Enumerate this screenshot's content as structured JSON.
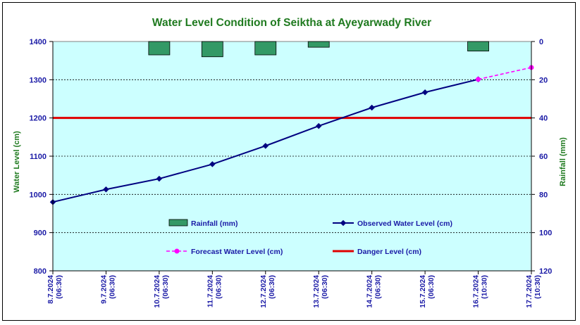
{
  "chart_data": {
    "type": "line",
    "title": "Water Level Condition of Seiktha at Ayeyarwady River",
    "ylabel": "Water Level (cm)",
    "y2label": "Rainfall (mm)",
    "ylim": [
      800,
      1400
    ],
    "y2lim": [
      0,
      120
    ],
    "y2_inverted": true,
    "yticks": [
      "1400",
      "1300",
      "1200",
      "1100",
      "1000",
      "900",
      "800"
    ],
    "y2ticks": [
      "0",
      "20",
      "40",
      "60",
      "80",
      "100",
      "120"
    ],
    "categories": [
      [
        "8.7.2024",
        "(06:30)"
      ],
      [
        "9.7.2024",
        "(06:30)"
      ],
      [
        "10.7.2024",
        "(06:30)"
      ],
      [
        "11.7.2024",
        "(06:30)"
      ],
      [
        "12.7.2024",
        "(06:30)"
      ],
      [
        "13.7.2024",
        "(06:30)"
      ],
      [
        "14.7.2024",
        "(06:30)"
      ],
      [
        "15.7.2024",
        "(06:30)"
      ],
      [
        "16.7.2024",
        "(10:30)"
      ],
      [
        "17.7.2024",
        "(10:30)"
      ]
    ],
    "grid": true,
    "legend_position": "lower-center",
    "series": [
      {
        "name": "Rainfall (mm)",
        "kind": "bar",
        "axis": "right",
        "color": "#339966",
        "values": [
          null,
          null,
          7,
          8,
          7,
          3,
          null,
          null,
          5,
          null
        ]
      },
      {
        "name": "Observed Water Level (cm)",
        "kind": "line",
        "axis": "left",
        "color": "#000080",
        "values": [
          980,
          1013,
          1041,
          1079,
          1127,
          1179,
          1227,
          1267,
          1301,
          null
        ]
      },
      {
        "name": "Forecast Water Level (cm)",
        "kind": "dashed-line",
        "axis": "left",
        "color": "#ff00ff",
        "values": [
          null,
          null,
          null,
          null,
          null,
          null,
          null,
          null,
          1301,
          1332
        ]
      },
      {
        "name": "Danger Level (cm)",
        "kind": "constant-line",
        "axis": "left",
        "color": "#e00000",
        "value": 1200
      }
    ]
  }
}
